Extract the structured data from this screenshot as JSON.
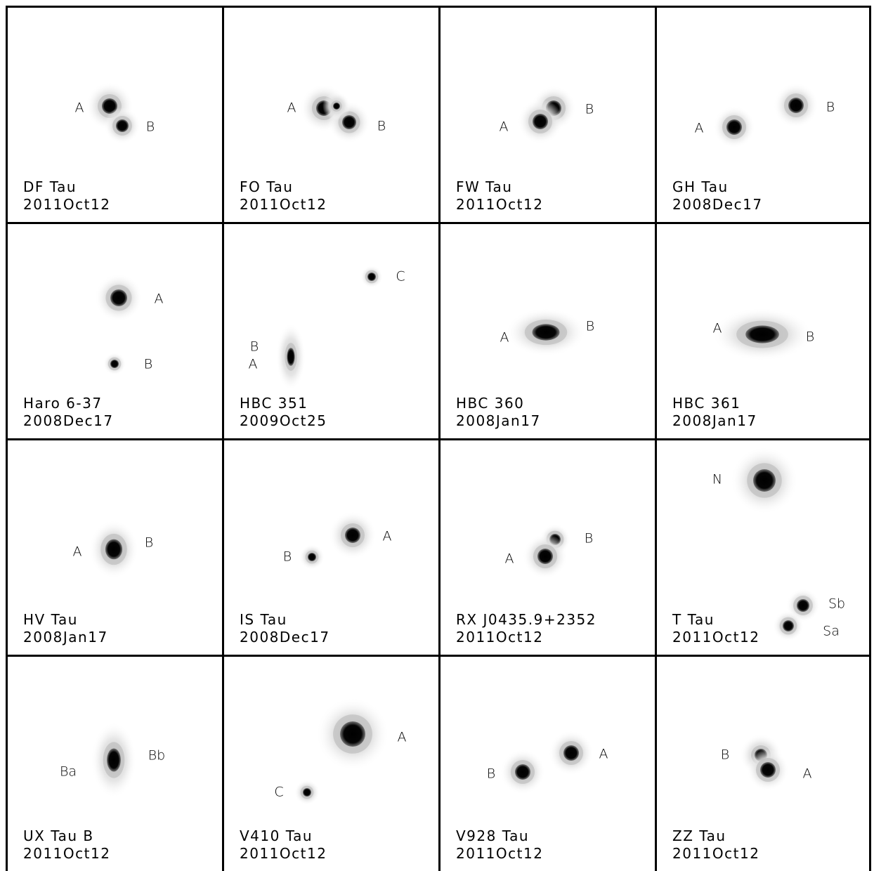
{
  "panels": [
    {
      "name": "DF Tau",
      "date": "2011Oct12",
      "labels": [
        {
          "text": "A"
        },
        {
          "text": "B"
        }
      ]
    },
    {
      "name": "FO Tau",
      "date": "2011Oct12",
      "labels": [
        {
          "text": "A"
        },
        {
          "text": "B"
        }
      ]
    },
    {
      "name": "FW Tau",
      "date": "2011Oct12",
      "labels": [
        {
          "text": "A"
        },
        {
          "text": "B"
        }
      ]
    },
    {
      "name": "GH Tau",
      "date": "2008Dec17",
      "labels": [
        {
          "text": "A"
        },
        {
          "text": "B"
        }
      ]
    },
    {
      "name": "Haro 6-37",
      "date": "2008Dec17",
      "labels": [
        {
          "text": "A"
        },
        {
          "text": "B"
        }
      ]
    },
    {
      "name": "HBC 351",
      "date": "2009Oct25",
      "labels": [
        {
          "text": "C"
        },
        {
          "text": "B"
        },
        {
          "text": "A"
        }
      ]
    },
    {
      "name": "HBC 360",
      "date": "2008Jan17",
      "labels": [
        {
          "text": "A"
        },
        {
          "text": "B"
        }
      ]
    },
    {
      "name": "HBC 361",
      "date": "2008Jan17",
      "labels": [
        {
          "text": "A"
        },
        {
          "text": "B"
        }
      ]
    },
    {
      "name": "HV Tau",
      "date": "2008Jan17",
      "labels": [
        {
          "text": "A"
        },
        {
          "text": "B"
        }
      ]
    },
    {
      "name": "IS Tau",
      "date": "2008Dec17",
      "labels": [
        {
          "text": "A"
        },
        {
          "text": "B"
        }
      ]
    },
    {
      "name": "RX J0435.9+2352",
      "date": "2011Oct12",
      "labels": [
        {
          "text": "A"
        },
        {
          "text": "B"
        }
      ]
    },
    {
      "name": "T Tau",
      "date": "2011Oct12",
      "labels": [
        {
          "text": "N"
        },
        {
          "text": "Sb"
        },
        {
          "text": "Sa"
        }
      ]
    },
    {
      "name": "UX Tau B",
      "date": "2011Oct12",
      "labels": [
        {
          "text": "Ba"
        },
        {
          "text": "Bb"
        }
      ]
    },
    {
      "name": "V410 Tau",
      "date": "2011Oct12",
      "labels": [
        {
          "text": "A"
        },
        {
          "text": "C"
        }
      ]
    },
    {
      "name": "V928 Tau",
      "date": "2011Oct12",
      "labels": [
        {
          "text": "A"
        },
        {
          "text": "B"
        }
      ]
    },
    {
      "name": "ZZ Tau",
      "date": "2011Oct12",
      "labels": [
        {
          "text": "B"
        },
        {
          "text": "A"
        }
      ]
    }
  ]
}
